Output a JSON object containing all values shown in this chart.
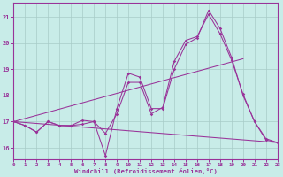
{
  "xlabel": "Windchill (Refroidissement éolien,°C)",
  "xlim": [
    0,
    23
  ],
  "ylim": [
    15.55,
    21.55
  ],
  "yticks": [
    16,
    17,
    18,
    19,
    20,
    21
  ],
  "xticks": [
    0,
    1,
    2,
    3,
    4,
    5,
    6,
    7,
    8,
    9,
    10,
    11,
    12,
    13,
    14,
    15,
    16,
    17,
    18,
    19,
    20,
    21,
    22,
    23
  ],
  "bg_color": "#c8ece8",
  "grid_color": "#a8ccc8",
  "line_color": "#993399",
  "line1_x": [
    0,
    1,
    2,
    3,
    4,
    5,
    6,
    7,
    8,
    9,
    10,
    11,
    12,
    13,
    14,
    15,
    16,
    17,
    18,
    19,
    20,
    21,
    22,
    23
  ],
  "line1_y": [
    17.0,
    16.85,
    16.6,
    17.0,
    16.85,
    16.85,
    16.9,
    17.0,
    15.7,
    17.5,
    18.85,
    18.7,
    17.5,
    17.5,
    19.0,
    19.95,
    20.2,
    21.25,
    20.55,
    19.45,
    18.0,
    17.0,
    16.3,
    16.2
  ],
  "line2_x": [
    0,
    1,
    2,
    3,
    4,
    5,
    6,
    7,
    8,
    9,
    10,
    11,
    12,
    13,
    14,
    15,
    16,
    17,
    18,
    19,
    20,
    21,
    22,
    23
  ],
  "line2_y": [
    17.0,
    16.85,
    16.6,
    17.0,
    16.85,
    16.85,
    17.05,
    17.0,
    16.55,
    17.3,
    18.5,
    18.5,
    17.3,
    17.55,
    19.3,
    20.1,
    20.25,
    21.1,
    20.35,
    19.35,
    18.05,
    17.0,
    16.35,
    16.2
  ],
  "line3_x": [
    0,
    20
  ],
  "line3_y": [
    17.0,
    19.4
  ],
  "line4_x": [
    0,
    23
  ],
  "line4_y": [
    17.0,
    16.2
  ]
}
